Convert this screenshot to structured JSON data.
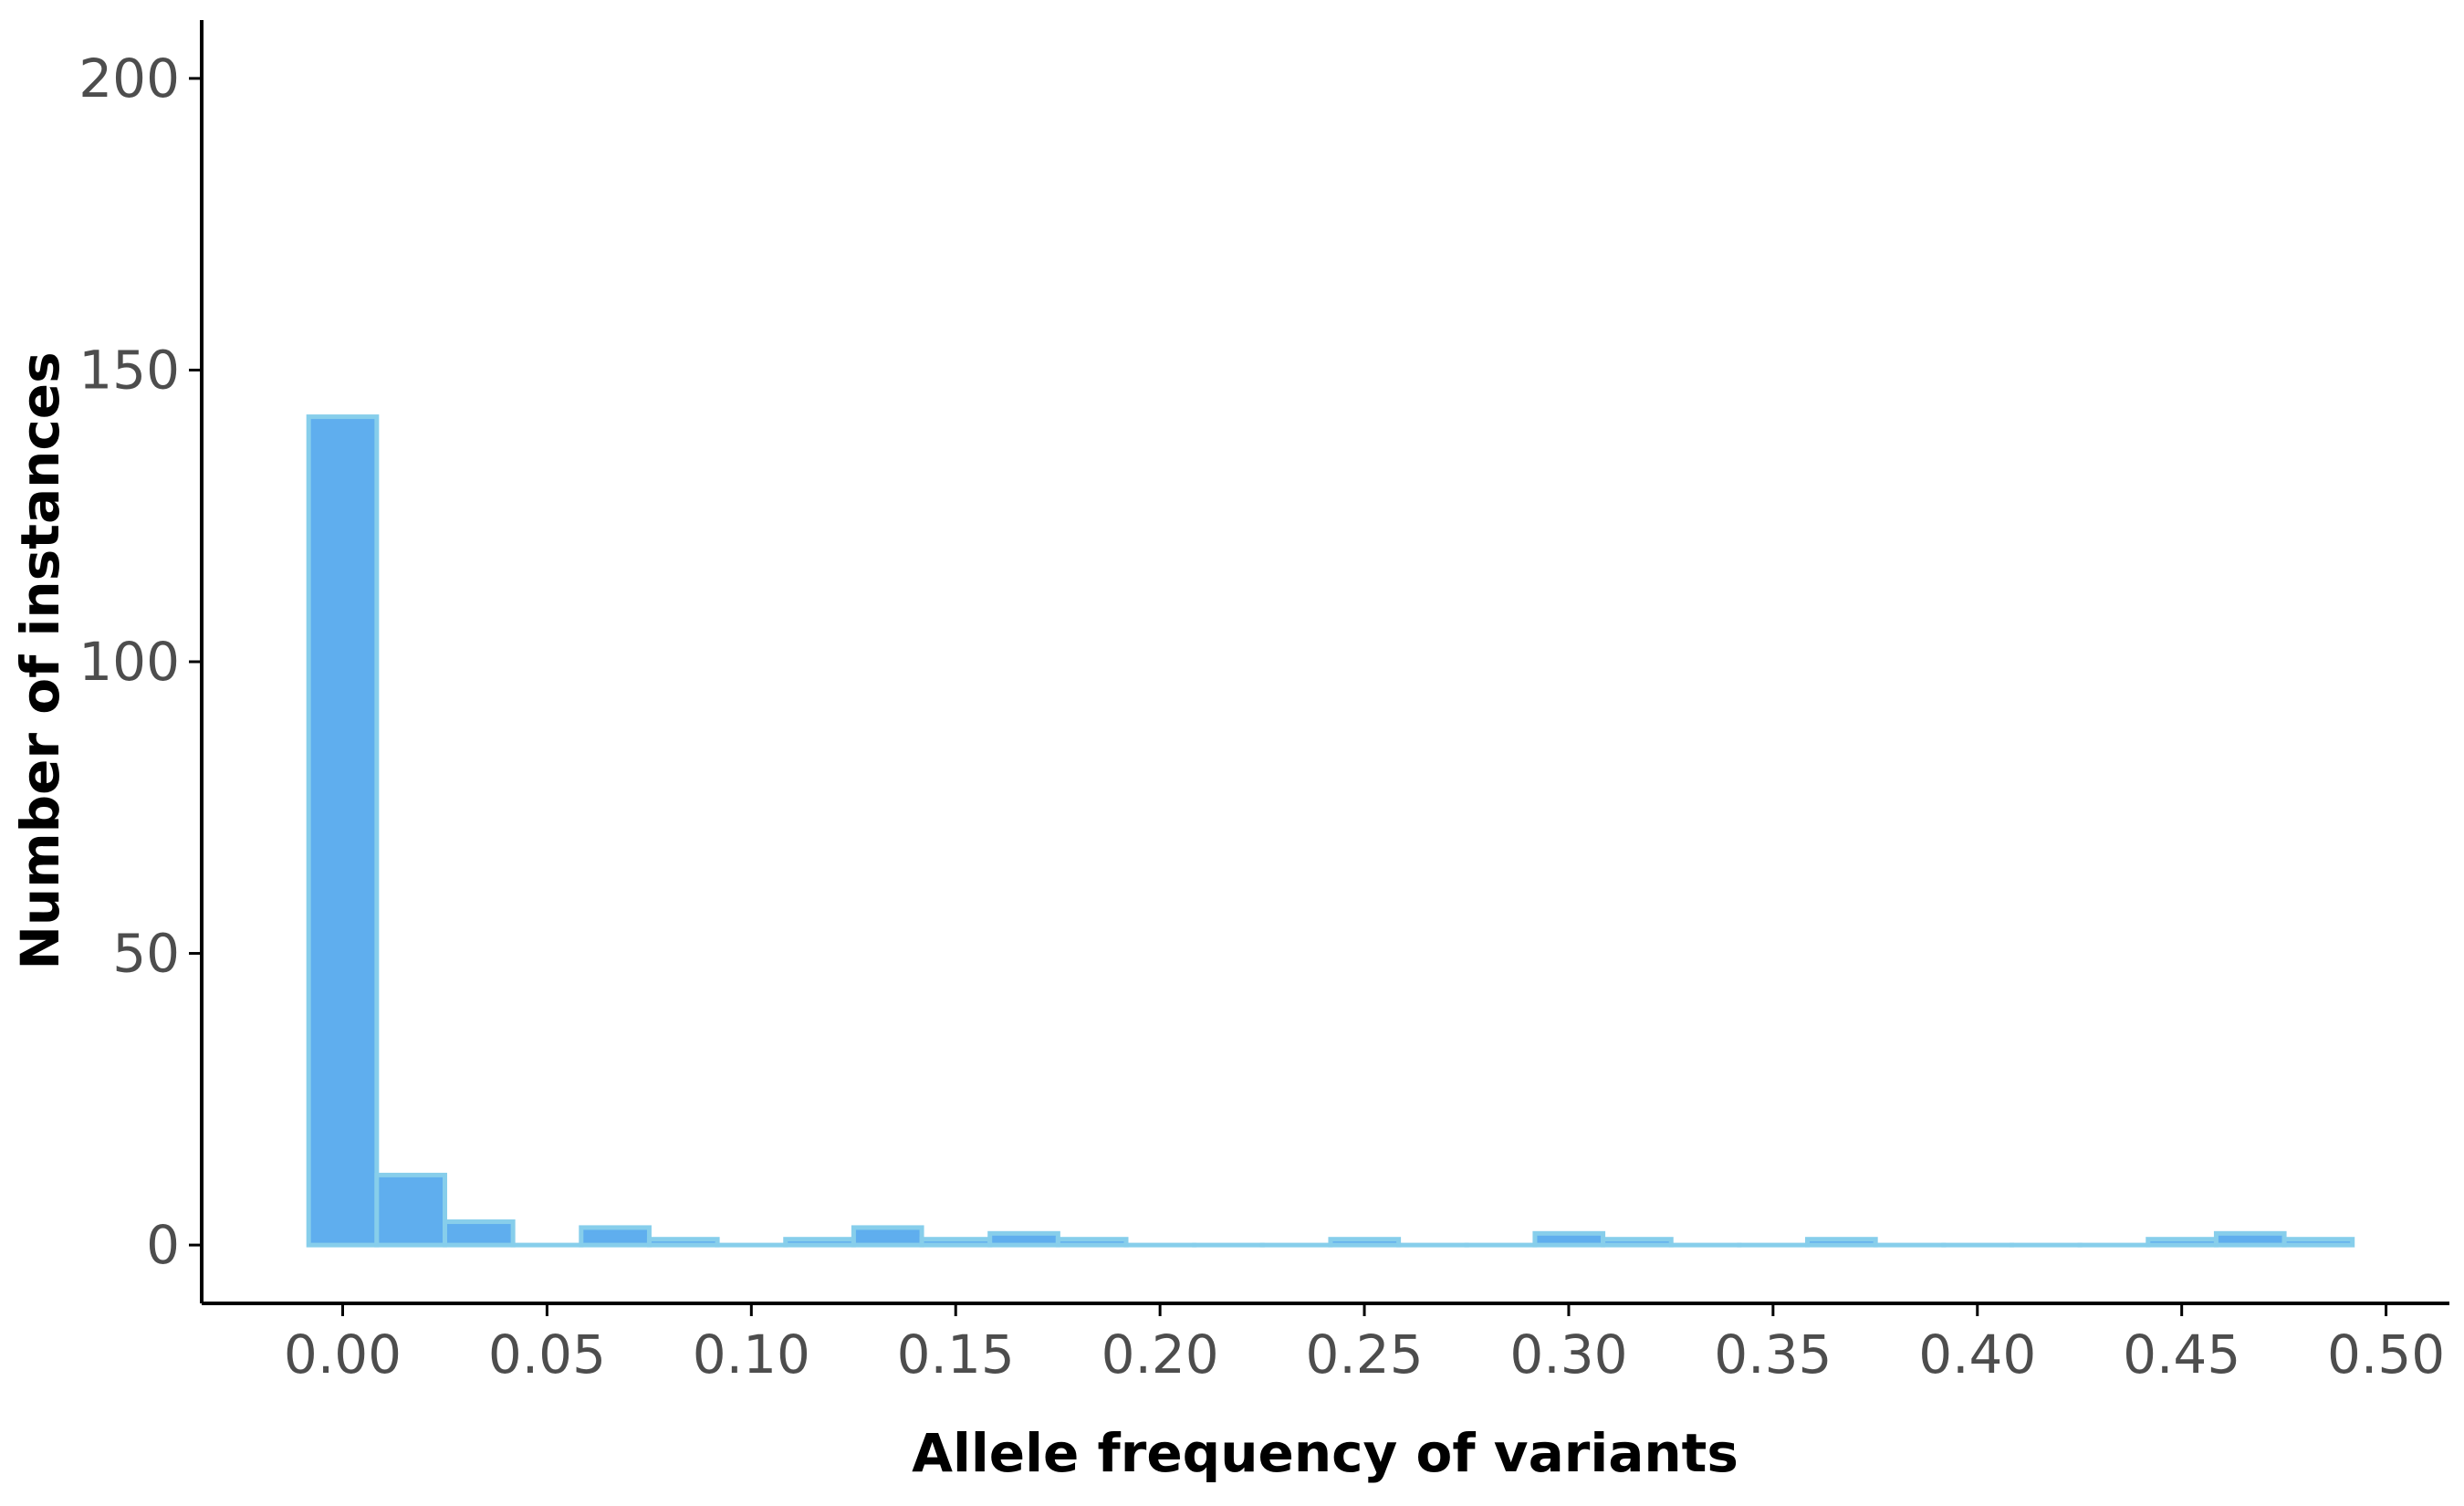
{
  "chart_data": {
    "type": "bar",
    "subtype": "histogram",
    "title": "",
    "xlabel": "Allele frequency of variants",
    "ylabel": "Number of instances",
    "xlim": [
      -0.0345,
      0.5155
    ],
    "ylim": [
      -10,
      210
    ],
    "xticks": [
      0.0,
      0.05,
      0.1,
      0.15,
      0.2,
      0.25,
      0.3,
      0.35,
      0.4,
      0.45,
      0.5
    ],
    "xtick_labels": [
      "0.00",
      "0.05",
      "0.10",
      "0.15",
      "0.20",
      "0.25",
      "0.30",
      "0.35",
      "0.40",
      "0.45",
      "0.50"
    ],
    "yticks": [
      0,
      50,
      100,
      150,
      200
    ],
    "ytick_labels": [
      "0",
      "50",
      "100",
      "150",
      "200"
    ],
    "bin_width": 0.01667,
    "bin_start": -0.00833,
    "values": [
      142,
      12,
      4,
      0,
      3,
      1,
      0,
      1,
      3,
      1,
      2,
      1,
      0,
      0,
      0,
      1,
      0,
      0,
      2,
      1,
      0,
      0,
      1,
      0,
      0,
      0,
      0,
      1,
      2,
      1
    ],
    "grid": false,
    "legend": "none",
    "colors": {
      "fill": "#5faeee",
      "outline": "#87ceeb",
      "axis": "#000000",
      "tick_text": "#4d4d4d"
    }
  }
}
